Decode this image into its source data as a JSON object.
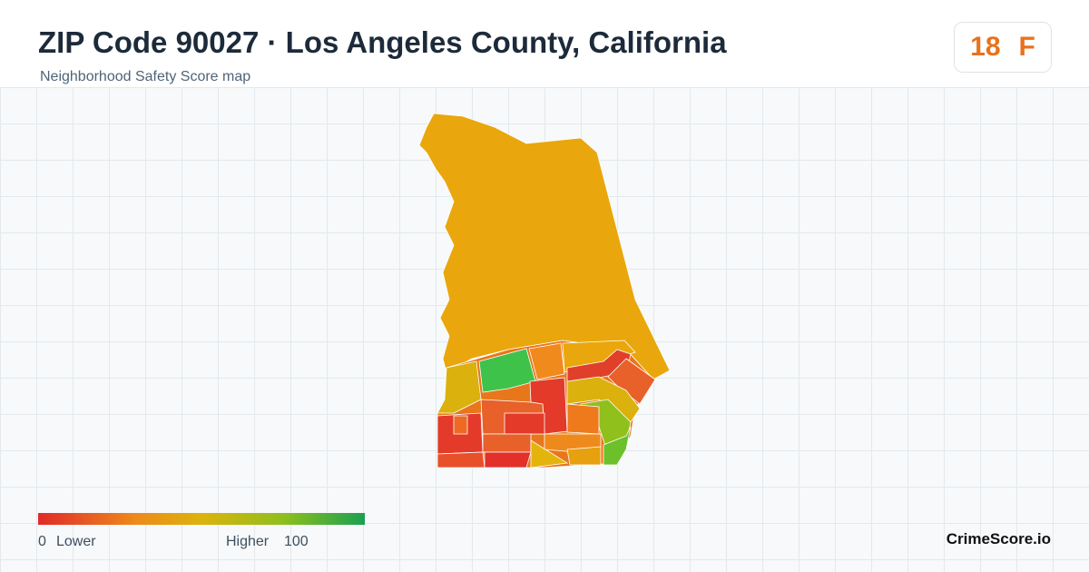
{
  "header": {
    "title": "ZIP Code 90027 · Los Angeles County, California",
    "subtitle": "Neighborhood Safety Score map"
  },
  "score": {
    "value": "18",
    "grade": "F"
  },
  "legend": {
    "min": 0,
    "min_label": "Lower",
    "max_label": "Higher",
    "max": 100
  },
  "brand": "CrimeScore.io"
}
